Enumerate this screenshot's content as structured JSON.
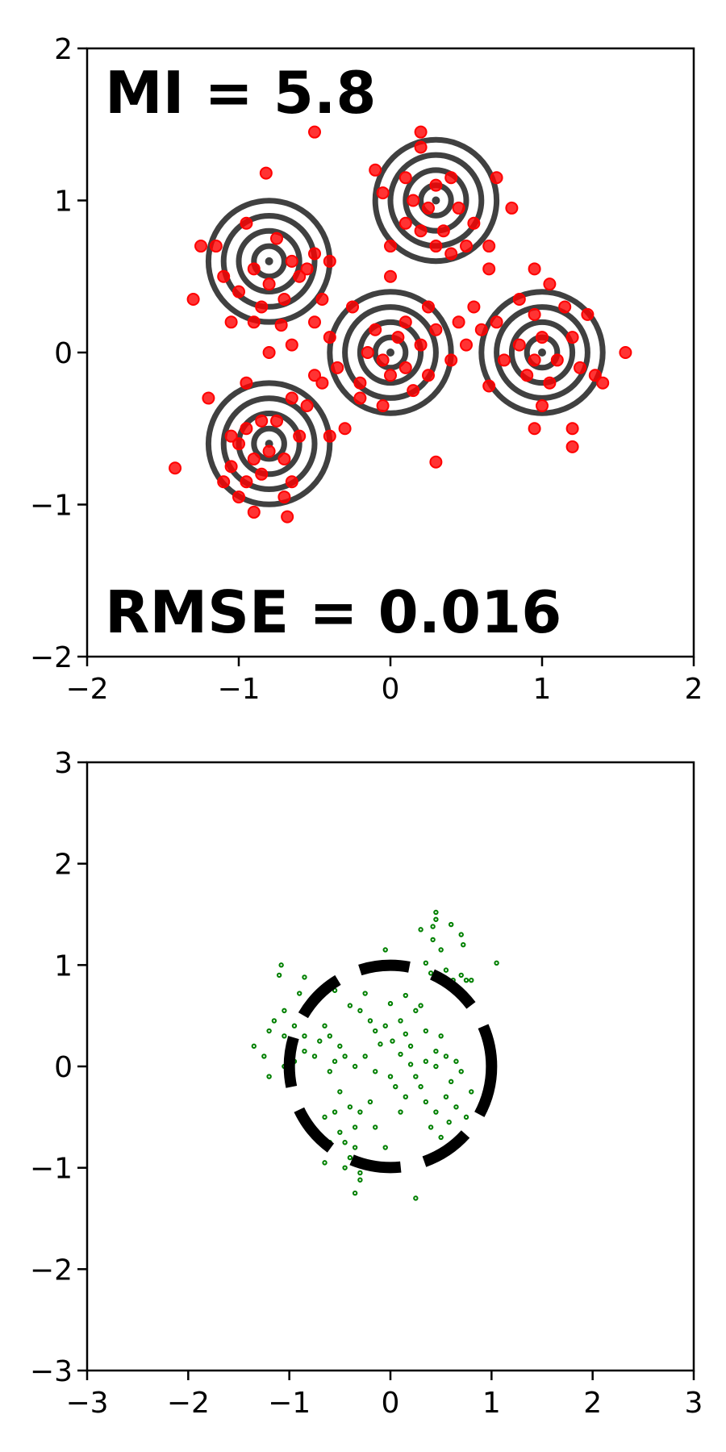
{
  "chart_data": [
    {
      "type": "scatter",
      "title": "",
      "xlabel": "",
      "ylabel": "",
      "xlim": [
        -2,
        2
      ],
      "ylim": [
        -2,
        2
      ],
      "xticks": [
        -2,
        -1,
        0,
        1,
        2
      ],
      "yticks": [
        -2,
        -1,
        0,
        1,
        2
      ],
      "xtick_labels": [
        "−2",
        "−1",
        "0",
        "1",
        "2"
      ],
      "ytick_labels": [
        "−2",
        "−1",
        "0",
        "1",
        "2"
      ],
      "grid": false,
      "annotations": {
        "mi": "MI = 5.8",
        "rmse": "RMSE = 0.016"
      },
      "colors": {
        "points": "#ff0000",
        "contours": "#404040"
      },
      "contours": {
        "description_type": "concentric density contours around five mixture components",
        "centers": [
          [
            -0.8,
            0.6
          ],
          [
            0.3,
            1.0
          ],
          [
            0.0,
            0.0
          ],
          [
            1.0,
            0.0
          ],
          [
            -0.8,
            -0.6
          ]
        ],
        "levels": [
          0.1,
          0.2,
          0.3,
          0.4
        ]
      },
      "series": [
        {
          "points": [
            [
              -0.95,
              0.85
            ],
            [
              -1.15,
              0.7
            ],
            [
              -0.75,
              0.75
            ],
            [
              -0.65,
              0.6
            ],
            [
              -0.9,
              0.55
            ],
            [
              -0.8,
              0.45
            ],
            [
              -1.0,
              0.4
            ],
            [
              -0.85,
              0.3
            ],
            [
              -0.7,
              0.35
            ],
            [
              -1.05,
              0.2
            ],
            [
              -0.6,
              0.5
            ],
            [
              -0.5,
              0.65
            ],
            [
              -0.45,
              0.35
            ],
            [
              -0.55,
              0.55
            ],
            [
              -1.25,
              0.7
            ],
            [
              -1.1,
              0.5
            ],
            [
              -0.82,
              1.18
            ],
            [
              -0.72,
              0.18
            ],
            [
              -0.9,
              0.2
            ],
            [
              -1.3,
              0.35
            ],
            [
              -0.4,
              0.6
            ],
            [
              -0.8,
              0.0
            ],
            [
              -0.65,
              0.05
            ],
            [
              -0.5,
              0.2
            ],
            [
              0.2,
              1.45
            ],
            [
              0.2,
              1.35
            ],
            [
              0.1,
              1.15
            ],
            [
              0.3,
              1.1
            ],
            [
              0.4,
              1.15
            ],
            [
              0.45,
              0.95
            ],
            [
              0.35,
              0.8
            ],
            [
              0.2,
              0.8
            ],
            [
              0.1,
              0.85
            ],
            [
              0.25,
              0.95
            ],
            [
              0.15,
              1.0
            ],
            [
              -0.05,
              1.05
            ],
            [
              0.0,
              0.7
            ],
            [
              0.3,
              0.7
            ],
            [
              0.5,
              0.7
            ],
            [
              0.55,
              0.85
            ],
            [
              0.7,
              1.15
            ],
            [
              0.8,
              0.95
            ],
            [
              0.65,
              0.7
            ],
            [
              0.4,
              0.65
            ],
            [
              -0.1,
              1.2
            ],
            [
              -0.5,
              1.45
            ],
            [
              0.65,
              0.55
            ],
            [
              0.0,
              0.5
            ],
            [
              -0.1,
              0.15
            ],
            [
              -0.05,
              -0.05
            ],
            [
              0.05,
              0.1
            ],
            [
              0.1,
              -0.1
            ],
            [
              0.0,
              -0.15
            ],
            [
              -0.15,
              0.0
            ],
            [
              0.2,
              0.05
            ],
            [
              0.25,
              -0.15
            ],
            [
              0.3,
              0.15
            ],
            [
              0.25,
              0.3
            ],
            [
              -0.2,
              -0.2
            ],
            [
              -0.35,
              -0.1
            ],
            [
              -0.4,
              0.1
            ],
            [
              -0.3,
              -0.5
            ],
            [
              0.1,
              0.2
            ],
            [
              -0.05,
              -0.35
            ],
            [
              0.45,
              0.2
            ],
            [
              0.4,
              -0.05
            ],
            [
              -0.2,
              -0.3
            ],
            [
              0.3,
              -0.72
            ],
            [
              -0.25,
              0.3
            ],
            [
              0.15,
              -0.25
            ],
            [
              0.85,
              0.35
            ],
            [
              0.95,
              0.25
            ],
            [
              1.05,
              0.45
            ],
            [
              1.15,
              0.3
            ],
            [
              0.85,
              0.05
            ],
            [
              0.95,
              -0.05
            ],
            [
              1.0,
              0.1
            ],
            [
              1.1,
              -0.05
            ],
            [
              1.2,
              0.1
            ],
            [
              1.25,
              -0.1
            ],
            [
              1.05,
              -0.2
            ],
            [
              0.9,
              -0.15
            ],
            [
              0.75,
              -0.05
            ],
            [
              0.7,
              0.2
            ],
            [
              0.6,
              0.15
            ],
            [
              0.55,
              0.3
            ],
            [
              1.3,
              0.25
            ],
            [
              1.35,
              -0.15
            ],
            [
              1.55,
              0.0
            ],
            [
              1.2,
              -0.5
            ],
            [
              1.2,
              -0.62
            ],
            [
              0.95,
              -0.5
            ],
            [
              1.0,
              -0.35
            ],
            [
              0.5,
              0.05
            ],
            [
              0.65,
              -0.22
            ],
            [
              0.95,
              0.55
            ],
            [
              1.4,
              -0.2
            ],
            [
              -0.85,
              -0.45
            ],
            [
              -0.95,
              -0.5
            ],
            [
              -0.75,
              -0.45
            ],
            [
              -0.7,
              -0.7
            ],
            [
              -0.8,
              -0.65
            ],
            [
              -0.9,
              -0.7
            ],
            [
              -1.0,
              -0.6
            ],
            [
              -1.05,
              -0.75
            ],
            [
              -0.95,
              -0.85
            ],
            [
              -0.85,
              -0.8
            ],
            [
              -0.7,
              -0.95
            ],
            [
              -0.65,
              -0.85
            ],
            [
              -0.6,
              -0.55
            ],
            [
              -0.55,
              -0.35
            ],
            [
              -0.45,
              -0.2
            ],
            [
              -0.65,
              -0.3
            ],
            [
              -1.0,
              -0.95
            ],
            [
              -0.9,
              -1.05
            ],
            [
              -0.68,
              -1.08
            ],
            [
              -1.2,
              -0.3
            ],
            [
              -1.42,
              -0.76
            ],
            [
              -1.05,
              -0.55
            ],
            [
              -0.4,
              -0.55
            ],
            [
              -0.5,
              -0.15
            ],
            [
              -0.95,
              -0.2
            ],
            [
              -1.1,
              -0.85
            ]
          ]
        }
      ]
    },
    {
      "type": "scatter",
      "title": "",
      "xlabel": "",
      "ylabel": "",
      "xlim": [
        -3,
        3
      ],
      "ylim": [
        -3,
        3
      ],
      "xticks": [
        -3,
        -2,
        -1,
        0,
        1,
        2,
        3
      ],
      "yticks": [
        -3,
        -2,
        -1,
        0,
        1,
        2,
        3
      ],
      "xtick_labels": [
        "−3",
        "−2",
        "−1",
        "0",
        "1",
        "2",
        "3"
      ],
      "ytick_labels": [
        "−3",
        "−2",
        "−1",
        "0",
        "1",
        "2",
        "3"
      ],
      "grid": false,
      "colors": {
        "points": "#008000",
        "circle": "#000000"
      },
      "reference_circle": {
        "center": [
          0,
          0
        ],
        "radius": 1,
        "style": "dashed"
      },
      "series": [
        {
          "points": [
            [
              0.45,
              1.52
            ],
            [
              0.45,
              1.45
            ],
            [
              0.42,
              1.38
            ],
            [
              0.42,
              1.25
            ],
            [
              0.3,
              1.35
            ],
            [
              0.5,
              1.15
            ],
            [
              0.6,
              1.4
            ],
            [
              0.7,
              1.3
            ],
            [
              0.72,
              1.2
            ],
            [
              0.55,
              0.95
            ],
            [
              0.62,
              0.85
            ],
            [
              0.7,
              0.9
            ],
            [
              0.75,
              0.85
            ],
            [
              0.4,
              0.92
            ],
            [
              0.35,
              1.02
            ],
            [
              0.8,
              0.85
            ],
            [
              1.05,
              1.02
            ],
            [
              -1.08,
              1.0
            ],
            [
              -1.1,
              0.9
            ],
            [
              -0.85,
              0.88
            ],
            [
              -0.55,
              0.75
            ],
            [
              -0.05,
              1.15
            ],
            [
              -0.4,
              0.6
            ],
            [
              -0.3,
              0.55
            ],
            [
              -0.2,
              0.45
            ],
            [
              -0.15,
              0.35
            ],
            [
              -0.05,
              0.4
            ],
            [
              0.1,
              0.45
            ],
            [
              0.15,
              0.32
            ],
            [
              0.2,
              0.2
            ],
            [
              0.25,
              0.55
            ],
            [
              0.3,
              0.6
            ],
            [
              0.35,
              0.35
            ],
            [
              0.45,
              0.15
            ],
            [
              0.5,
              0.3
            ],
            [
              0.55,
              0.1
            ],
            [
              0.65,
              0.05
            ],
            [
              0.7,
              -0.05
            ],
            [
              -1.15,
              0.45
            ],
            [
              -1.2,
              0.35
            ],
            [
              -1.05,
              0.3
            ],
            [
              -0.95,
              0.4
            ],
            [
              -0.85,
              0.3
            ],
            [
              -1.35,
              0.2
            ],
            [
              -1.25,
              0.1
            ],
            [
              -1.2,
              -0.1
            ],
            [
              -1.05,
              0.0
            ],
            [
              -0.95,
              0.05
            ],
            [
              -0.85,
              0.15
            ],
            [
              -0.75,
              0.1
            ],
            [
              -0.7,
              0.25
            ],
            [
              -0.6,
              0.3
            ],
            [
              -0.5,
              0.2
            ],
            [
              -0.55,
              0.05
            ],
            [
              -0.6,
              -0.05
            ],
            [
              -0.45,
              0.1
            ],
            [
              -0.35,
              0.0
            ],
            [
              -0.25,
              0.1
            ],
            [
              -0.15,
              -0.05
            ],
            [
              0.0,
              -0.1
            ],
            [
              0.05,
              -0.2
            ],
            [
              0.15,
              -0.3
            ],
            [
              0.25,
              -0.1
            ],
            [
              0.35,
              -0.35
            ],
            [
              0.45,
              -0.45
            ],
            [
              0.55,
              -0.3
            ],
            [
              0.65,
              -0.4
            ],
            [
              0.75,
              -0.5
            ],
            [
              0.6,
              -0.15
            ],
            [
              0.45,
              0.0
            ],
            [
              0.35,
              0.05
            ],
            [
              0.2,
              0.02
            ],
            [
              0.1,
              0.12
            ],
            [
              -0.65,
              -0.5
            ],
            [
              -0.55,
              -0.45
            ],
            [
              -0.4,
              -0.4
            ],
            [
              -0.3,
              -0.45
            ],
            [
              -0.35,
              -0.6
            ],
            [
              -0.5,
              -0.65
            ],
            [
              -0.6,
              -0.75
            ],
            [
              -0.45,
              -0.75
            ],
            [
              -0.35,
              -0.8
            ],
            [
              -0.3,
              -0.95
            ],
            [
              -0.4,
              -0.9
            ],
            [
              -0.45,
              -1.0
            ],
            [
              -0.3,
              -1.05
            ],
            [
              -0.3,
              -1.12
            ],
            [
              -0.35,
              -1.25
            ],
            [
              -0.65,
              -0.95
            ],
            [
              -0.7,
              -0.7
            ],
            [
              -0.05,
              -0.8
            ],
            [
              0.05,
              -1.0
            ],
            [
              0.25,
              -1.3
            ],
            [
              -0.8,
              0.55
            ],
            [
              -0.9,
              0.72
            ],
            [
              -0.75,
              0.7
            ],
            [
              -1.05,
              0.55
            ],
            [
              -0.65,
              0.4
            ],
            [
              -0.25,
              0.72
            ],
            [
              0.0,
              0.62
            ],
            [
              0.15,
              0.7
            ],
            [
              -0.1,
              0.22
            ],
            [
              0.02,
              0.25
            ],
            [
              0.3,
              -0.2
            ],
            [
              0.4,
              -0.6
            ],
            [
              0.5,
              -0.7
            ],
            [
              0.58,
              -0.55
            ],
            [
              0.8,
              -0.25
            ],
            [
              0.7,
              -0.75
            ],
            [
              -0.15,
              -0.6
            ],
            [
              -0.2,
              -0.35
            ],
            [
              0.1,
              -0.45
            ],
            [
              -0.5,
              -0.25
            ]
          ]
        }
      ]
    }
  ]
}
